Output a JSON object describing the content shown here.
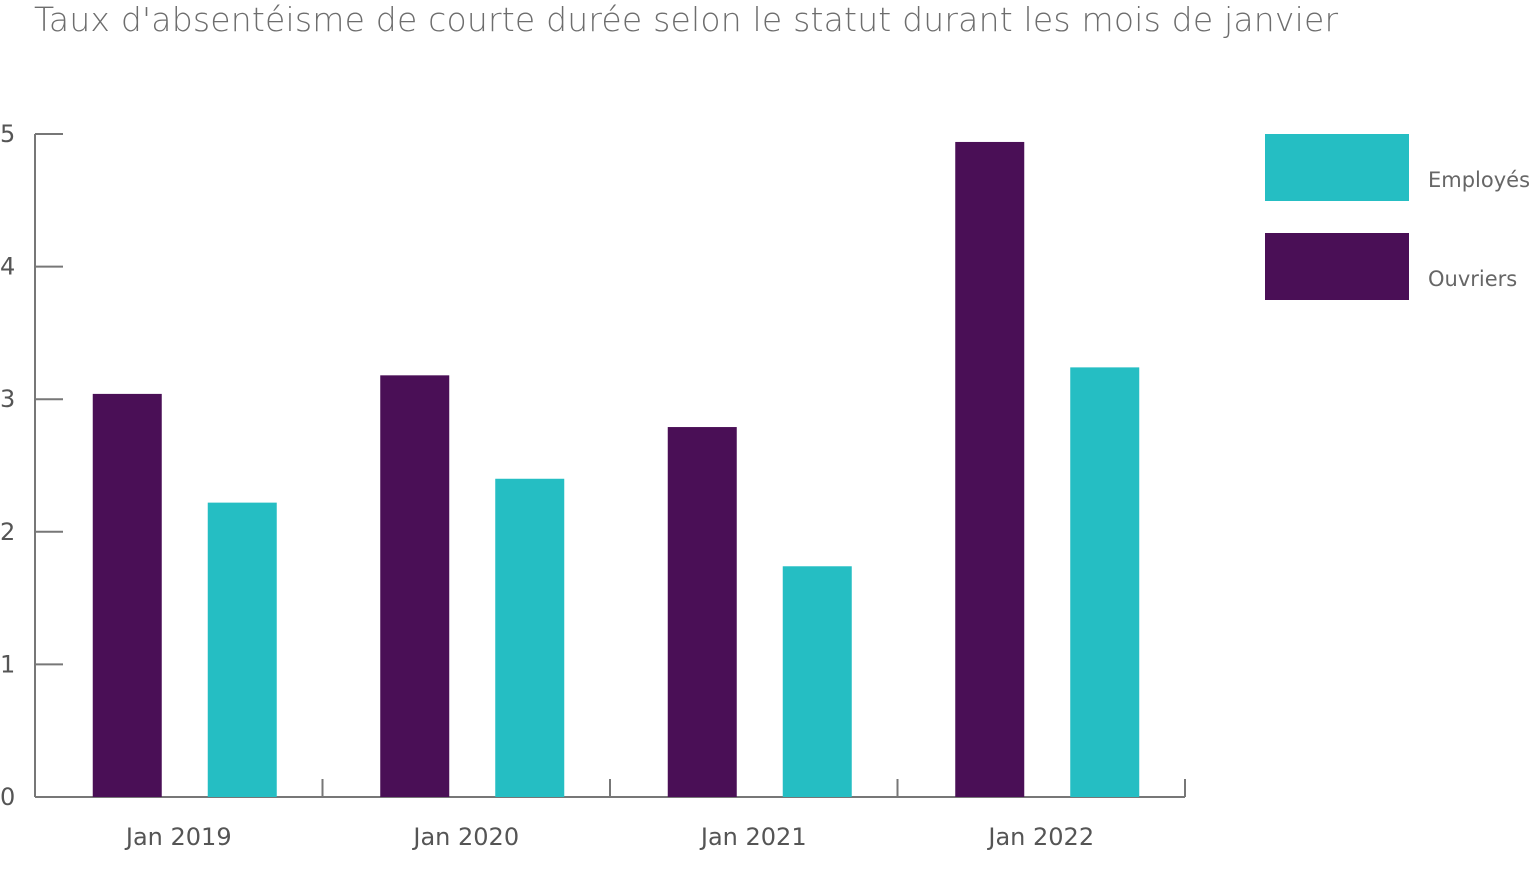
{
  "chart_data": {
    "type": "bar",
    "title": "Taux d'absentéisme de courte durée selon le statut durant les mois de janvier",
    "categories": [
      "Jan 2019",
      "Jan 2020",
      "Jan 2021",
      "Jan 2022"
    ],
    "series": [
      {
        "name": "Ouvriers",
        "color": "#4a0f56",
        "values": [
          3.04,
          3.18,
          2.79,
          4.94
        ]
      },
      {
        "name": "Employés",
        "color": "#25bec3",
        "values": [
          2.22,
          2.4,
          1.74,
          3.24
        ]
      }
    ],
    "yticks": [
      "0",
      "1",
      "2",
      "3",
      "4",
      "5"
    ],
    "ylim": [
      0,
      5
    ],
    "xlabel": "",
    "ylabel": "",
    "grid": false,
    "legend_position": "right"
  },
  "legend": {
    "items": [
      {
        "label": "Employés",
        "color": "#25bec3"
      },
      {
        "label": "Ouvriers",
        "color": "#4a0f56"
      }
    ]
  }
}
